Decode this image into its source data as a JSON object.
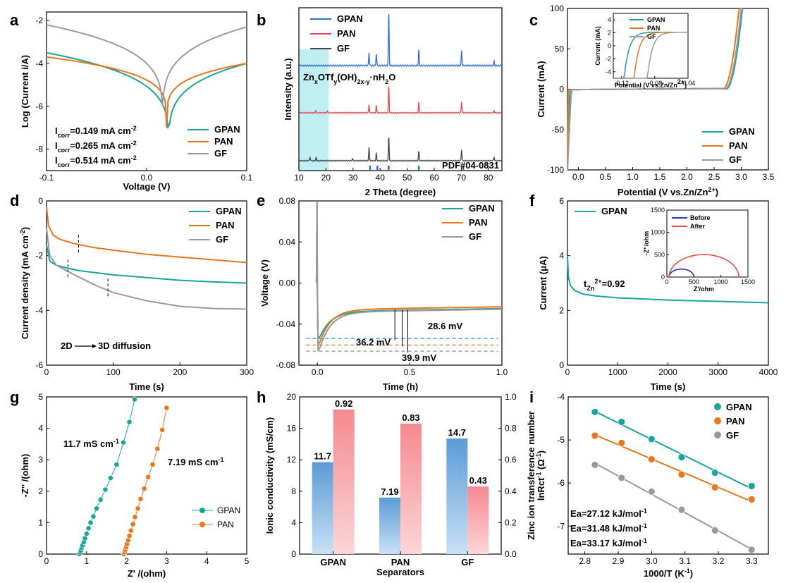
{
  "colors": {
    "gpan": "#1aa39a",
    "pan": "#e8761c",
    "gf": "#9a9a9a",
    "xrd_gpan": "#2f6fd6",
    "xrd_pan": "#e8474f",
    "xrd_gf": "#444444",
    "bar_blue": "#5b9bd5",
    "bar_red": "#f48a8f",
    "before": "#2233cc",
    "after": "#e84a50",
    "shade": "#bfeff2"
  },
  "chart_data": [
    {
      "id": "a",
      "panel_label": "a",
      "type": "line",
      "title": "",
      "xlabel": "Voltage (V)",
      "ylabel": "Log (Current i/A)",
      "xlim": [
        -0.1,
        0.1
      ],
      "ylim": [
        -9,
        -1.6
      ],
      "xticks": [
        "-0.1",
        "0.0",
        "0.1"
      ],
      "xtick_values": [
        -0.1,
        0.0,
        0.1
      ],
      "yticks": [
        "-2",
        "-4",
        "-6",
        "-8"
      ],
      "ytick_values": [
        -2,
        -4,
        -6,
        -8
      ],
      "series": [
        {
          "name": "GPAN",
          "color_key": "gpan",
          "ecorr": 0.022,
          "min": -8.5,
          "left": -3.5,
          "right": -4.0
        },
        {
          "name": "PAN",
          "color_key": "pan",
          "ecorr": 0.02,
          "min": -7.0,
          "left": -3.7,
          "right": -4.0
        },
        {
          "name": "GF",
          "color_key": "gf",
          "ecorr": 0.016,
          "min": -7.3,
          "left": -2.2,
          "right": -2.3
        }
      ],
      "legend": [
        "GPAN",
        "PAN",
        "GF"
      ],
      "annotations": [
        {
          "main": "I",
          "sub": "corr",
          "rest": "=0.149 mA cm",
          "sup": "-2",
          "color_key": "gpan"
        },
        {
          "main": "I",
          "sub": "corr",
          "rest": "=0.265 mA cm",
          "sup": "-2",
          "color_key": "pan"
        },
        {
          "main": "I",
          "sub": "corr",
          "rest": "=0.514 mA cm",
          "sup": "-2",
          "color_key": "gf"
        }
      ]
    },
    {
      "id": "b",
      "panel_label": "b",
      "type": "line",
      "xlabel": "2 Theta (degree)",
      "ylabel": "Intensity (a.u.)",
      "xlim": [
        10,
        85
      ],
      "xticks": [
        "10",
        "20",
        "30",
        "40",
        "50",
        "60",
        "70",
        "80"
      ],
      "xtick_values": [
        10,
        20,
        30,
        40,
        50,
        60,
        70,
        80
      ],
      "series": [
        {
          "name": "GPAN",
          "color_key": "xrd_gpan",
          "peaks": [
            [
              35.9,
              0.25
            ],
            [
              38.6,
              0.22
            ],
            [
              43.2,
              1.0
            ],
            [
              54.3,
              0.3
            ],
            [
              70.1,
              0.28
            ],
            [
              82.1,
              0.08
            ]
          ]
        },
        {
          "name": "PAN",
          "color_key": "xrd_pan",
          "peaks": [
            [
              16.2,
              0.06
            ],
            [
              20.5,
              0.05
            ],
            [
              35.9,
              0.22
            ],
            [
              38.6,
              0.2
            ],
            [
              43.2,
              0.72
            ],
            [
              54.3,
              0.28
            ],
            [
              70.1,
              0.3
            ],
            [
              82.1,
              0.06
            ]
          ]
        },
        {
          "name": "GF",
          "color_key": "xrd_gf",
          "peaks": [
            [
              14.1,
              0.1
            ],
            [
              16.4,
              0.09
            ],
            [
              29.8,
              0.06
            ],
            [
              35.9,
              0.35
            ],
            [
              38.6,
              0.2
            ],
            [
              43.2,
              0.65
            ],
            [
              54.3,
              0.25
            ],
            [
              70.1,
              0.3
            ],
            [
              82.1,
              0.1
            ]
          ]
        }
      ],
      "reference": {
        "label": "PDF#04-0831",
        "positions": [
          36.3,
          39.0,
          43.2,
          54.3,
          70.7
        ]
      },
      "shaded_range": [
        10,
        21
      ],
      "legend": [
        "GPAN",
        "PAN",
        "GF"
      ],
      "phase_label": {
        "t1": "Zn",
        "s1": "x",
        "t2": "OTf",
        "s2": "y",
        "t3": "(OH)",
        "s3": "2x-y",
        "t4": "·nH",
        "s4": "2",
        "t5": "O"
      }
    },
    {
      "id": "c",
      "panel_label": "c",
      "type": "line",
      "xlabel": "Potential (V vs.Zn/Zn",
      "xlabel_sup": "2+",
      "xlabel_end": ")",
      "ylabel": "Current (mA)",
      "xlim": [
        -0.2,
        3.5
      ],
      "ylim": [
        -100,
        100
      ],
      "xticks": [
        "0.0",
        "0.5",
        "1.0",
        "1.5",
        "2.0",
        "2.5",
        "3.0",
        "3.5"
      ],
      "xtick_values": [
        0,
        0.5,
        1.0,
        1.5,
        2.0,
        2.5,
        3.0,
        3.5
      ],
      "yticks": [
        "100",
        "50",
        "0",
        "-50",
        "-100"
      ],
      "ytick_values": [
        100,
        50,
        0,
        -50,
        -100
      ],
      "series": [
        {
          "name": "GPAN",
          "color_key": "gpan",
          "onset": 2.72
        },
        {
          "name": "PAN",
          "color_key": "pan",
          "onset": 2.66
        },
        {
          "name": "GF",
          "color_key": "gf",
          "onset": 2.7
        }
      ],
      "legend": [
        "GPAN",
        "PAN",
        "GF"
      ],
      "inset": {
        "xlabel": "Potential (V vs.Zn/Zn",
        "xlabel_sup": "2+",
        "xlabel_end": ")",
        "ylabel": "Current (mA)",
        "xlim": [
          -0.13,
          -0.04
        ],
        "ylim": [
          -5,
          5
        ],
        "xticks": [
          "-0.12",
          "-0.08",
          "-0.04"
        ],
        "xtick_values": [
          -0.12,
          -0.08,
          -0.04
        ],
        "yticks": [
          "4",
          "2",
          "0",
          "-2",
          "-4"
        ],
        "ytick_values": [
          4,
          2,
          0,
          -2,
          -4
        ],
        "legend": [
          "GPAN",
          "PAN",
          "GF"
        ],
        "onsets": [
          -0.117,
          -0.105,
          -0.089
        ]
      }
    },
    {
      "id": "d",
      "panel_label": "d",
      "type": "line",
      "xlabel": "Time (s)",
      "ylabel": "Current density (mA cm",
      "ylabel_sup": "-2",
      "ylabel_end": ")",
      "xlim": [
        0,
        300
      ],
      "ylim": [
        -6,
        0
      ],
      "xticks": [
        "0",
        "100",
        "200",
        "300"
      ],
      "xtick_values": [
        0,
        100,
        200,
        300
      ],
      "yticks": [
        "0",
        "-2",
        "-4",
        "-6"
      ],
      "ytick_values": [
        0,
        -2,
        -4,
        -6
      ],
      "series": [
        {
          "name": "GPAN",
          "color_key": "gpan",
          "x": [
            0,
            5,
            15,
            30,
            50,
            100,
            150,
            200,
            250,
            300
          ],
          "y": [
            -1.6,
            -2.2,
            -2.35,
            -2.45,
            -2.55,
            -2.7,
            -2.8,
            -2.9,
            -2.96,
            -3.0
          ]
        },
        {
          "name": "PAN",
          "color_key": "pan",
          "x": [
            0,
            3,
            10,
            20,
            40,
            70,
            100,
            150,
            200,
            250,
            300
          ],
          "y": [
            -0.2,
            -0.9,
            -1.25,
            -1.4,
            -1.55,
            -1.7,
            -1.8,
            -1.95,
            -2.05,
            -2.15,
            -2.25
          ]
        },
        {
          "name": "GF",
          "color_key": "gf",
          "x": [
            0,
            5,
            15,
            30,
            50,
            75,
            100,
            150,
            200,
            250,
            300
          ],
          "y": [
            -1.0,
            -2.0,
            -2.35,
            -2.55,
            -2.8,
            -3.1,
            -3.35,
            -3.65,
            -3.85,
            -3.93,
            -3.95
          ]
        }
      ],
      "markers": [
        [
          32,
          -2.5
        ],
        [
          48,
          -1.6
        ],
        [
          92,
          -3.2
        ]
      ],
      "legend": [
        "GPAN",
        "PAN",
        "GF"
      ],
      "annotation": {
        "left": "2D",
        "right": "3D diffusion"
      }
    },
    {
      "id": "e",
      "panel_label": "e",
      "type": "line",
      "xlabel": "Time (h)",
      "ylabel": "Voltage (V)",
      "xlim": [
        -0.1,
        1.0
      ],
      "ylim": [
        -0.08,
        0.08
      ],
      "xticks": [
        "0.0",
        "0.5",
        "1.0"
      ],
      "xtick_values": [
        0,
        0.5,
        1.0
      ],
      "yticks": [
        "0.08",
        "0.04",
        "0.00",
        "-0.04",
        "-0.08"
      ],
      "ytick_values": [
        0.08,
        0.04,
        0.0,
        -0.04,
        -0.08
      ],
      "series": [
        {
          "name": "GPAN",
          "color_key": "gpan",
          "min": -0.0541,
          "plateau": -0.0249
        },
        {
          "name": "PAN",
          "color_key": "pan",
          "min": -0.0604,
          "plateau": -0.0231
        },
        {
          "name": "GF",
          "color_key": "gf",
          "min": -0.0664,
          "plateau": -0.0255
        }
      ],
      "legend": [
        "GPAN",
        "PAN",
        "GF"
      ],
      "annotations": [
        {
          "text": "28.6 mV",
          "color_key": "gpan"
        },
        {
          "text": "36.2 mV",
          "color_key": "pan"
        },
        {
          "text": "39.9 mV",
          "color_key": "gf"
        }
      ]
    },
    {
      "id": "f",
      "panel_label": "f",
      "type": "line",
      "xlabel": "Time (s)",
      "ylabel": "Current (μA)",
      "xlim": [
        0,
        4000
      ],
      "ylim": [
        0,
        6
      ],
      "xticks": [
        "0",
        "1000",
        "2000",
        "3000",
        "4000"
      ],
      "xtick_values": [
        0,
        1000,
        2000,
        3000,
        4000
      ],
      "yticks": [
        "6",
        "4",
        "2",
        "0"
      ],
      "ytick_values": [
        6,
        4,
        2,
        0
      ],
      "series": [
        {
          "name": "GPAN",
          "color_key": "gpan",
          "x": [
            0,
            20,
            60,
            150,
            300,
            600,
            1000,
            2000,
            3000,
            4000
          ],
          "y": [
            4.0,
            3.2,
            2.9,
            2.72,
            2.6,
            2.52,
            2.46,
            2.38,
            2.33,
            2.28
          ]
        }
      ],
      "legend": [
        "GPAN"
      ],
      "annotation": {
        "main": "t",
        "sub": "Zn",
        "subsup": "2+",
        "rest": "=0.92"
      },
      "inset": {
        "xlabel": "Z'/ohm",
        "ylabel": "-Z''/ohm",
        "xlim": [
          0,
          1500
        ],
        "ylim": [
          0,
          1500
        ],
        "xticks": [
          "0",
          "500",
          "1000",
          "1500"
        ],
        "xtick_values": [
          0,
          500,
          1000,
          1500
        ],
        "yticks": [
          "1500",
          "1000",
          "500",
          "0"
        ],
        "ytick_values": [
          1500,
          1000,
          500,
          0
        ],
        "series": [
          {
            "name": "Before",
            "color_key": "before",
            "start": 40,
            "end": 500
          },
          {
            "name": "After",
            "color_key": "after",
            "start": 40,
            "end": 1330
          }
        ]
      }
    },
    {
      "id": "g",
      "panel_label": "g",
      "type": "scatter",
      "xlabel": "Z' /(ohm)",
      "ylabel": "-Z'' /(ohm)",
      "xlim": [
        0,
        5
      ],
      "ylim": [
        0,
        5
      ],
      "xticks": [
        "0",
        "1",
        "2",
        "3",
        "4",
        "5"
      ],
      "xtick_values": [
        0,
        1,
        2,
        3,
        4,
        5
      ],
      "yticks": [
        "5",
        "4",
        "3",
        "2",
        "1",
        "0"
      ],
      "ytick_values": [
        5,
        4,
        3,
        2,
        1,
        0
      ],
      "series": [
        {
          "name": "GPAN",
          "color_key": "gpan",
          "x": [
            0.82,
            0.84,
            0.86,
            0.88,
            0.9,
            0.93,
            0.96,
            1.0,
            1.05,
            1.1,
            1.17,
            1.25,
            1.35,
            1.47,
            1.6,
            1.75,
            1.92,
            2.07,
            2.2
          ],
          "y": [
            0.0,
            0.05,
            0.12,
            0.2,
            0.28,
            0.38,
            0.5,
            0.65,
            0.82,
            1.0,
            1.2,
            1.45,
            1.73,
            2.05,
            2.42,
            2.85,
            3.55,
            4.2,
            4.92
          ]
        },
        {
          "name": "PAN",
          "color_key": "pan",
          "x": [
            1.93,
            1.95,
            1.97,
            1.99,
            2.01,
            2.04,
            2.07,
            2.11,
            2.16,
            2.21,
            2.28,
            2.35,
            2.44,
            2.54,
            2.65,
            2.77,
            2.89,
            3.0
          ],
          "y": [
            0.0,
            0.06,
            0.14,
            0.22,
            0.32,
            0.44,
            0.58,
            0.75,
            0.95,
            1.18,
            1.45,
            1.75,
            2.08,
            2.45,
            2.85,
            3.35,
            3.95,
            4.65
          ]
        }
      ],
      "legend": [
        "GPAN",
        "PAN"
      ],
      "annotations": [
        {
          "text": "11.7 mS cm",
          "sup": "-1",
          "color_key": "gpan"
        },
        {
          "text": "7.19 mS cm",
          "sup": "-1",
          "color_key": "pan"
        }
      ]
    },
    {
      "id": "h",
      "panel_label": "h",
      "type": "bar",
      "xlabel": "Separators",
      "ylabel_left": "Ionic conductivity (mS/cm)",
      "ylabel_right": "Zinc ion transference number",
      "categories": [
        "GPAN",
        "PAN",
        "GF"
      ],
      "series": [
        {
          "name": "Ionic conductivity",
          "axis": "left",
          "values": [
            11.7,
            7.19,
            14.7
          ],
          "labels": [
            "11.7",
            "7.19",
            "14.7"
          ]
        },
        {
          "name": "Zinc ion transference number",
          "axis": "right",
          "values": [
            0.92,
            0.83,
            0.43
          ],
          "labels": [
            "0.92",
            "0.83",
            "0.43"
          ]
        }
      ],
      "ylim_left": [
        0,
        20
      ],
      "ylim_right": [
        0,
        1.0
      ],
      "yticks_left": [
        "20",
        "16",
        "12",
        "8",
        "4",
        "0"
      ],
      "ytick_values_left": [
        20,
        16,
        12,
        8,
        4,
        0
      ],
      "yticks_right": [
        "1.0",
        "0.8",
        "0.6",
        "0.4",
        "0.2",
        "0.0"
      ],
      "ytick_values_right": [
        1.0,
        0.8,
        0.6,
        0.4,
        0.2,
        0.0
      ]
    },
    {
      "id": "i",
      "panel_label": "i",
      "type": "scatter",
      "xlabel": "1000/T (K",
      "xlabel_sup": "-1",
      "xlabel_end": ")",
      "ylabel": "lnRct",
      "ylabel_sup": "-1",
      "ylabel_end": " (Ω",
      "ylabel_sup2": "-1",
      "ylabel_end2": ")",
      "xlim": [
        2.75,
        3.35
      ],
      "ylim": [
        -7.65,
        -4.0
      ],
      "xticks": [
        "2.8",
        "2.9",
        "3.0",
        "3.1",
        "3.2",
        "3.3"
      ],
      "xtick_values": [
        2.8,
        2.9,
        3.0,
        3.1,
        3.2,
        3.3
      ],
      "yticks": [
        "-4",
        "-5",
        "-6",
        "-7"
      ],
      "ytick_values": [
        -4,
        -5,
        -6,
        -7
      ],
      "series": [
        {
          "name": "GPAN",
          "color_key": "gpan",
          "x": [
            2.83,
            2.91,
            3.0,
            3.09,
            3.19,
            3.3
          ],
          "y": [
            -4.35,
            -4.58,
            -4.98,
            -5.4,
            -5.76,
            -6.07
          ]
        },
        {
          "name": "PAN",
          "color_key": "pan",
          "x": [
            2.83,
            2.91,
            3.0,
            3.09,
            3.19,
            3.3
          ],
          "y": [
            -4.9,
            -5.07,
            -5.45,
            -5.8,
            -6.1,
            -6.38
          ]
        },
        {
          "name": "GF",
          "color_key": "gf",
          "x": [
            2.83,
            2.91,
            3.0,
            3.09,
            3.19,
            3.3
          ],
          "y": [
            -5.58,
            -5.88,
            -6.2,
            -6.62,
            -7.1,
            -7.55
          ]
        }
      ],
      "legend": [
        "GPAN",
        "PAN",
        "GF"
      ],
      "annotations": [
        {
          "text": "Ea=27.12 kJ/mol",
          "sup": "-1",
          "color_key": "gpan"
        },
        {
          "text": "Ea=31.48 kJ/mol",
          "sup": "-1",
          "color_key": "pan"
        },
        {
          "text": "Ea=33.17 kJ/mol",
          "sup": "-1",
          "color_key": "gf"
        }
      ]
    }
  ]
}
